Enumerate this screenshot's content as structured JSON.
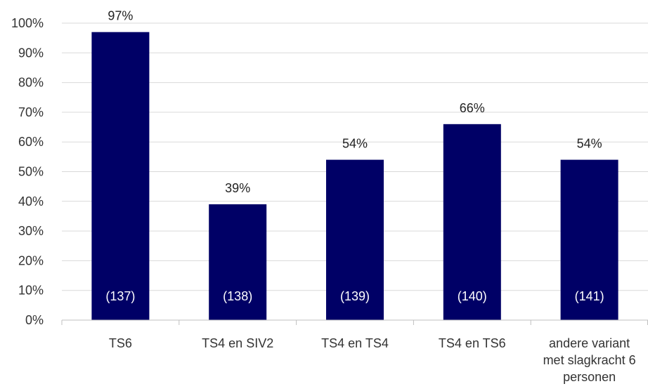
{
  "chart_data": {
    "type": "bar",
    "categories": [
      [
        "TS6"
      ],
      [
        "TS4 en SIV2"
      ],
      [
        "TS4 en TS4"
      ],
      [
        "TS4 en TS6"
      ],
      [
        "andere variant",
        "met slagkracht 6",
        "personen"
      ]
    ],
    "values": [
      97,
      39,
      54,
      66,
      54
    ],
    "value_labels": [
      "97%",
      "39%",
      "54%",
      "66%",
      "54%"
    ],
    "n_labels": [
      "(137)",
      "(138)",
      "(139)",
      "(140)",
      "(141)"
    ],
    "y_ticks": [
      0,
      10,
      20,
      30,
      40,
      50,
      60,
      70,
      80,
      90,
      100
    ],
    "y_tick_labels": [
      "0%",
      "10%",
      "20%",
      "30%",
      "40%",
      "50%",
      "60%",
      "70%",
      "80%",
      "90%",
      "100%"
    ],
    "ylim": [
      0,
      100
    ],
    "grid": true,
    "legend": "none",
    "bar_color": "#000066"
  }
}
